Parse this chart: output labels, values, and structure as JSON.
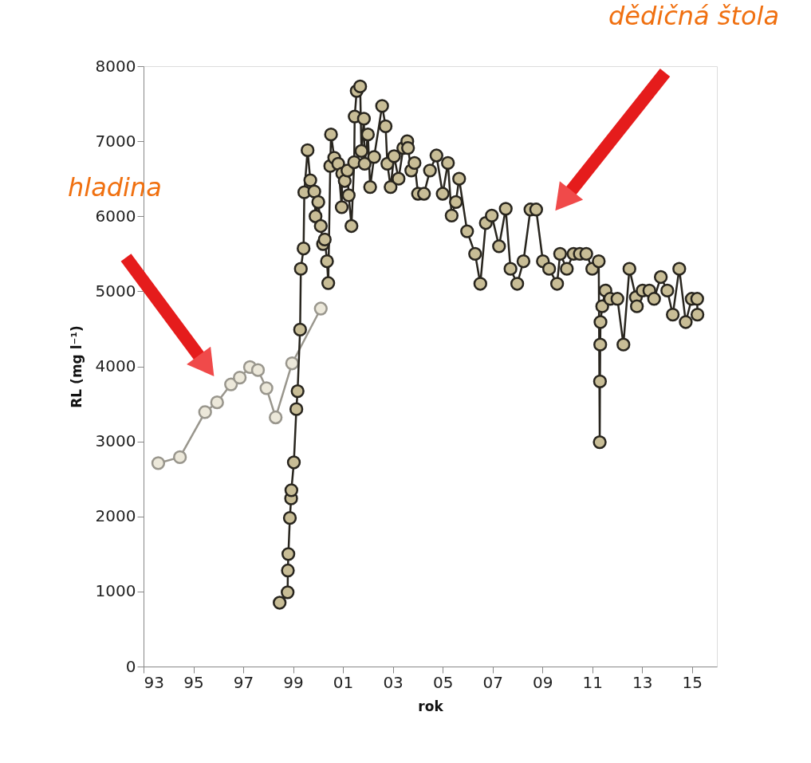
{
  "chart_data": {
    "type": "line",
    "xlabel": "rok",
    "ylabel": "RL (mg l⁻¹)",
    "marker": "circle",
    "line_style": "solid",
    "xlim": [
      1993,
      2016
    ],
    "ylim": [
      0,
      8000
    ],
    "xticks": [
      {
        "value": 1993,
        "label": "93"
      },
      {
        "value": 1995,
        "label": "95"
      },
      {
        "value": 1997,
        "label": "97"
      },
      {
        "value": 1999,
        "label": "99"
      },
      {
        "value": 2001,
        "label": "01"
      },
      {
        "value": 2003,
        "label": "03"
      },
      {
        "value": 2005,
        "label": "05"
      },
      {
        "value": 2007,
        "label": "07"
      },
      {
        "value": 2009,
        "label": "09"
      },
      {
        "value": 2011,
        "label": "11"
      },
      {
        "value": 2013,
        "label": "13"
      },
      {
        "value": 2015,
        "label": "15"
      }
    ],
    "yticks": [
      0,
      1000,
      2000,
      3000,
      4000,
      5000,
      6000,
      7000,
      8000
    ],
    "annotations": [
      "hladina",
      "dědičná štola"
    ],
    "series": [
      {
        "color": "#ece8da",
        "x": [
          1993.59,
          1994.46,
          1995.47,
          1995.95,
          1996.51,
          1996.86,
          1997.27,
          1997.59,
          1997.93,
          1998.3,
          1998.96,
          2000.11
        ],
        "values": [
          2710,
          2790,
          3390,
          3520,
          3760,
          3850,
          3990,
          3950,
          3710,
          3320,
          4040,
          4770
        ]
      },
      {
        "color": "#c8bd96",
        "x": [
          1998.46,
          1998.78,
          1998.79,
          1998.81,
          1998.87,
          1998.92,
          1998.93,
          1999.03,
          1999.13,
          1999.18,
          1999.28,
          1999.31,
          1999.42,
          1999.45,
          1999.58,
          1999.69,
          1999.85,
          1999.9,
          2000.01,
          2000.11,
          2000.2,
          2000.27,
          2000.36,
          2000.41,
          2000.49,
          2000.52,
          2000.65,
          2000.81,
          2000.95,
          2000.97,
          2001.07,
          2001.18,
          2001.23,
          2001.34,
          2001.45,
          2001.47,
          2001.55,
          2001.69,
          2001.74,
          2001.84,
          2001.87,
          2002.0,
          2002.09,
          2002.25,
          2002.57,
          2002.71,
          2002.78,
          2002.91,
          2003.05,
          2003.23,
          2003.42,
          2003.58,
          2003.61,
          2003.74,
          2003.87,
          2004.01,
          2004.25,
          2004.49,
          2004.75,
          2005.0,
          2005.21,
          2005.36,
          2005.53,
          2005.66,
          2005.98,
          2006.3,
          2006.51,
          2006.73,
          2006.97,
          2007.26,
          2007.53,
          2007.72,
          2007.99,
          2008.24,
          2008.52,
          2008.75,
          2009.02,
          2009.27,
          2009.59,
          2009.71,
          2009.98,
          2010.25,
          2010.5,
          2010.76,
          2011.0,
          2011.26,
          2011.3,
          2011.31,
          2011.32,
          2011.33,
          2011.4,
          2011.53,
          2011.72,
          2012.01,
          2012.25,
          2012.49,
          2012.75,
          2012.79,
          2013.02,
          2013.29,
          2013.48,
          2013.75,
          2014.01,
          2014.23,
          2014.49,
          2014.75,
          2014.99,
          2015.21,
          2015.22
        ],
        "values": [
          850,
          990,
          1280,
          1500,
          1980,
          2240,
          2350,
          2720,
          3430,
          3670,
          4490,
          5300,
          5570,
          6320,
          6880,
          6480,
          6330,
          6000,
          6190,
          5870,
          5630,
          5690,
          5400,
          5110,
          6670,
          7090,
          6780,
          6700,
          6120,
          6570,
          6470,
          6610,
          6280,
          5870,
          6720,
          7330,
          7670,
          7730,
          6870,
          7300,
          6700,
          7090,
          6390,
          6790,
          7470,
          7200,
          6700,
          6390,
          6800,
          6500,
          6910,
          7000,
          6910,
          6610,
          6710,
          6300,
          6300,
          6610,
          6810,
          6300,
          6710,
          6010,
          6190,
          6500,
          5800,
          5500,
          5100,
          5910,
          6010,
          5600,
          6100,
          5300,
          5100,
          5400,
          6090,
          6090,
          5400,
          5300,
          5100,
          5500,
          5300,
          5500,
          5500,
          5500,
          5300,
          5400,
          2990,
          3800,
          4290,
          4590,
          4800,
          5010,
          4900,
          4900,
          4290,
          5300,
          4920,
          4800,
          5010,
          5010,
          4900,
          5190,
          5010,
          4690,
          5300,
          4590,
          4900,
          4900,
          4690
        ]
      }
    ]
  }
}
